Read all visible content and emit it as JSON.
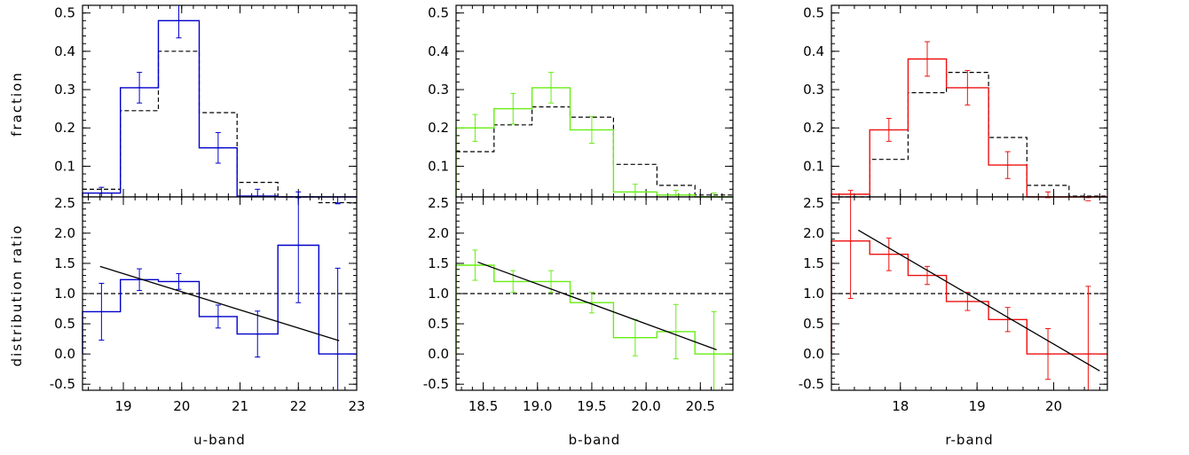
{
  "y_labels": {
    "top": "fraction",
    "bottom": "distribution ratio"
  },
  "chart_data": [
    {
      "type": "histogram",
      "panel": "u-band fraction",
      "color": "#0000cc",
      "x_label": "u-band",
      "xlim": [
        18.3,
        23.0
      ],
      "ylim": [
        0.02,
        0.52
      ],
      "x_ticks": [
        19,
        20,
        21,
        22,
        23
      ],
      "y_ticks": [
        0.1,
        0.2,
        0.3,
        0.4,
        0.5
      ],
      "y_tick_labels": [
        "0.1",
        "0.2",
        "0.3",
        "0.4",
        "0.5"
      ],
      "bin_edges": [
        18.3,
        18.95,
        19.6,
        20.3,
        20.95,
        21.65,
        22.35,
        23.0
      ],
      "values": [
        0.03,
        0.305,
        0.48,
        0.148,
        0.022,
        0.018,
        0.002
      ],
      "errors": [
        0.015,
        0.04,
        0.045,
        0.04,
        0.018,
        0.015,
        0.002
      ],
      "reference": [
        0.04,
        0.245,
        0.4,
        0.24,
        0.058,
        0.02,
        0.005
      ]
    },
    {
      "type": "histogram",
      "panel": "u-band ratio",
      "color": "#0000cc",
      "xlim": [
        18.3,
        23.0
      ],
      "ylim": [
        -0.6,
        2.6
      ],
      "x_ticks": [
        19,
        20,
        21,
        22,
        23
      ],
      "x_tick_labels": [
        "19",
        "20",
        "21",
        "22",
        "23"
      ],
      "y_ticks": [
        -0.5,
        0.0,
        0.5,
        1.0,
        1.5,
        2.0,
        2.5
      ],
      "y_tick_labels": [
        "-0.5",
        "0.0",
        "0.5",
        "1.0",
        "1.5",
        "2.0",
        "2.5"
      ],
      "bin_edges": [
        18.3,
        18.95,
        19.6,
        20.3,
        20.95,
        21.65,
        22.35,
        23.0
      ],
      "values": [
        0.7,
        1.23,
        1.2,
        0.62,
        0.33,
        1.8,
        0.0
      ],
      "errors": [
        0.47,
        0.18,
        0.13,
        0.19,
        0.38,
        0.95,
        1.42
      ],
      "reference_line": 1.0,
      "fit_line": {
        "x": [
          18.6,
          22.7
        ],
        "y": [
          1.45,
          0.22
        ]
      }
    },
    {
      "type": "histogram",
      "panel": "b-band fraction",
      "color": "#66ee11",
      "x_label": "b-band",
      "xlim": [
        18.25,
        20.8
      ],
      "ylim": [
        0.02,
        0.52
      ],
      "x_ticks": [
        18.5,
        19.0,
        19.5,
        20.0,
        20.5
      ],
      "y_ticks": [
        0.1,
        0.2,
        0.3,
        0.4,
        0.5
      ],
      "y_tick_labels": [
        "0.1",
        "0.2",
        "0.3",
        "0.4",
        "0.5"
      ],
      "bin_edges": [
        18.25,
        18.6,
        18.95,
        19.3,
        19.7,
        20.1,
        20.45,
        20.8
      ],
      "values": [
        0.2,
        0.25,
        0.305,
        0.195,
        0.033,
        0.025,
        0.02
      ],
      "errors": [
        0.035,
        0.04,
        0.04,
        0.035,
        0.02,
        0.012,
        0.01
      ],
      "reference": [
        0.138,
        0.208,
        0.255,
        0.228,
        0.105,
        0.05,
        0.025
      ]
    },
    {
      "type": "histogram",
      "panel": "b-band ratio",
      "color": "#66ee11",
      "xlim": [
        18.25,
        20.8
      ],
      "ylim": [
        -0.6,
        2.6
      ],
      "x_ticks": [
        18.5,
        19.0,
        19.5,
        20.0,
        20.5
      ],
      "x_tick_labels": [
        "18.5",
        "19.0",
        "19.5",
        "20.0",
        "20.5"
      ],
      "y_ticks": [
        -0.5,
        0.0,
        0.5,
        1.0,
        1.5,
        2.0,
        2.5
      ],
      "y_tick_labels": [
        "-0.5",
        "0.0",
        "0.5",
        "1.0",
        "1.5",
        "2.0",
        "2.5"
      ],
      "bin_edges": [
        18.25,
        18.6,
        18.95,
        19.3,
        19.7,
        20.1,
        20.45,
        20.8
      ],
      "values": [
        1.47,
        1.2,
        1.2,
        0.85,
        0.27,
        0.37,
        0.0
      ],
      "errors": [
        0.25,
        0.18,
        0.18,
        0.17,
        0.3,
        0.45,
        0.7
      ],
      "reference_line": 1.0,
      "fit_line": {
        "x": [
          18.45,
          20.65
        ],
        "y": [
          1.52,
          0.07
        ]
      }
    },
    {
      "type": "histogram",
      "panel": "r-band fraction",
      "color": "#ee1111",
      "x_label": "r-band",
      "xlim": [
        17.1,
        20.7
      ],
      "ylim": [
        0.02,
        0.52
      ],
      "x_ticks": [
        18,
        19,
        20
      ],
      "y_ticks": [
        0.1,
        0.2,
        0.3,
        0.4,
        0.5
      ],
      "y_tick_labels": [
        "0.1",
        "0.2",
        "0.3",
        "0.4",
        "0.5"
      ],
      "bin_edges": [
        17.1,
        17.6,
        18.1,
        18.6,
        19.15,
        19.65,
        20.2,
        20.7
      ],
      "values": [
        0.027,
        0.195,
        0.38,
        0.305,
        0.103,
        0.018,
        0.01
      ],
      "errors": [
        0.01,
        0.03,
        0.045,
        0.045,
        0.035,
        0.015,
        0.008
      ],
      "reference": [
        0.02,
        0.118,
        0.292,
        0.345,
        0.175,
        0.05,
        0.022
      ]
    },
    {
      "type": "histogram",
      "panel": "r-band ratio",
      "color": "#ee1111",
      "xlim": [
        17.1,
        20.7
      ],
      "ylim": [
        -0.6,
        2.6
      ],
      "x_ticks": [
        18,
        19,
        20
      ],
      "x_tick_labels": [
        "18",
        "19",
        "20"
      ],
      "y_ticks": [
        -0.5,
        0.0,
        0.5,
        1.0,
        1.5,
        2.0,
        2.5
      ],
      "y_tick_labels": [
        "-0.5",
        "0.0",
        "0.5",
        "1.0",
        "1.5",
        "2.0",
        "2.5"
      ],
      "bin_edges": [
        17.1,
        17.6,
        18.1,
        18.6,
        19.15,
        19.65,
        20.2,
        20.7
      ],
      "values": [
        1.87,
        1.65,
        1.3,
        0.87,
        0.57,
        0.0,
        0.0
      ],
      "errors": [
        0.95,
        0.27,
        0.15,
        0.15,
        0.2,
        0.42,
        1.12
      ],
      "reference_line": 1.0,
      "fit_line": {
        "x": [
          17.45,
          20.6
        ],
        "y": [
          2.05,
          -0.28
        ]
      }
    }
  ]
}
